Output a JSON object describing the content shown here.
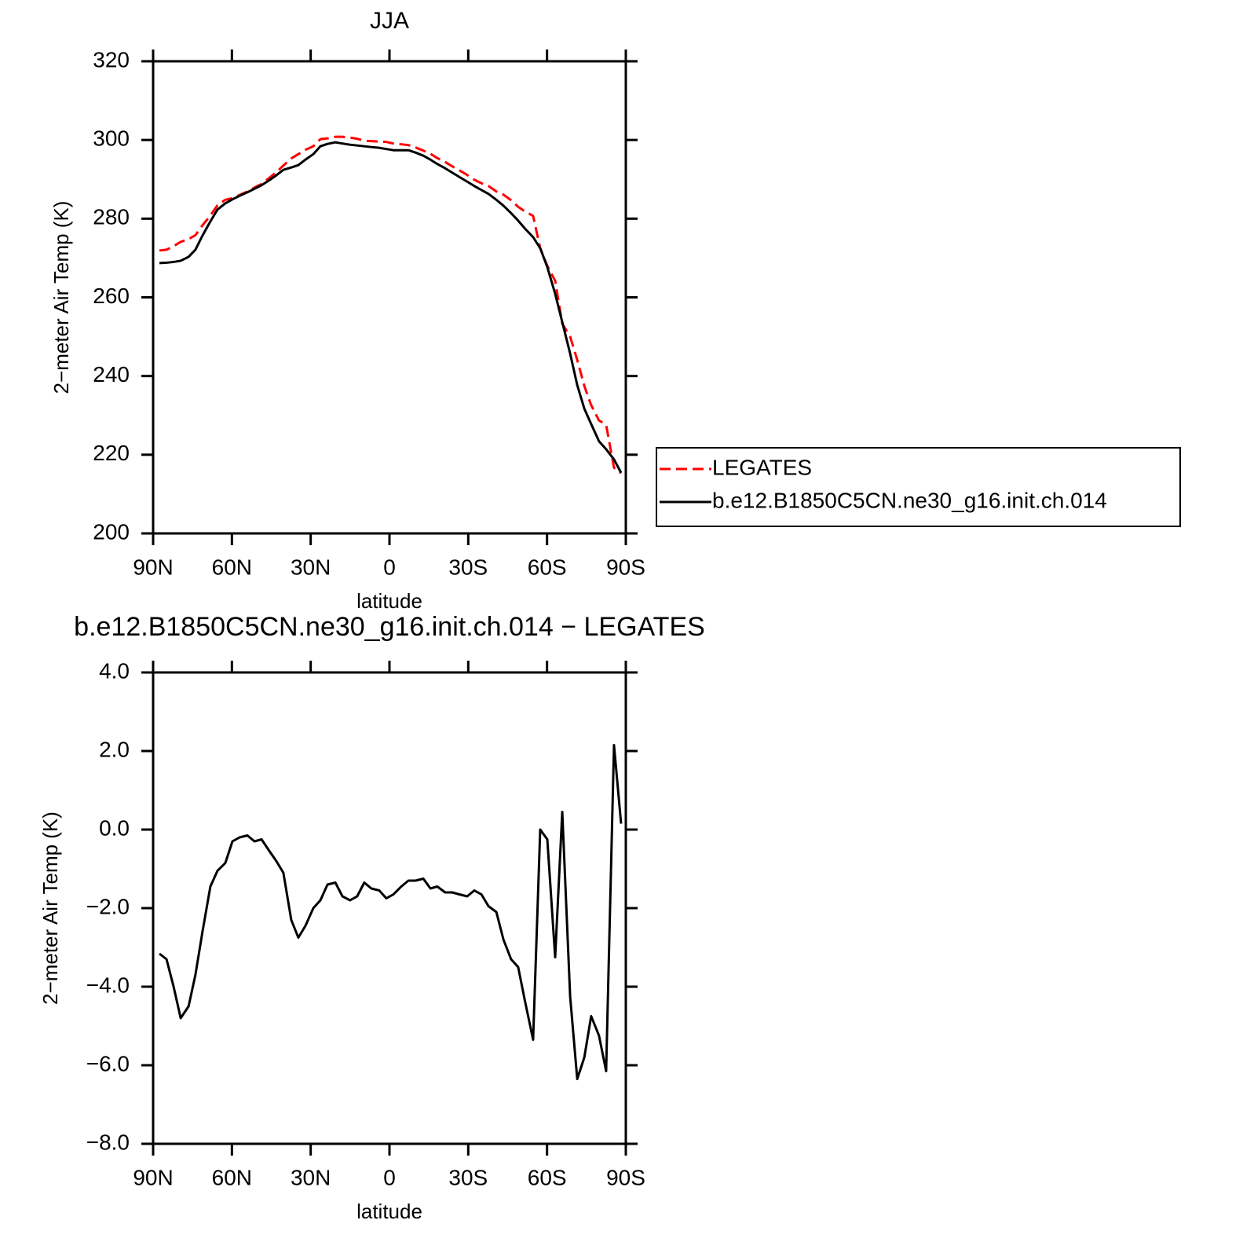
{
  "chart_data": [
    {
      "type": "line",
      "title": "JJA",
      "x_label": "latitude",
      "y_label": "2−meter Air Temp (K)",
      "x": [
        87.6,
        84.9,
        82.2,
        79.5,
        76.5,
        73.9,
        71.2,
        68.2,
        65.5,
        62.5,
        59.8,
        57.1,
        54.1,
        51.4,
        48.7,
        45.7,
        43.1,
        40.4,
        37.4,
        34.7,
        32.0,
        29.0,
        26.3,
        23.6,
        20.6,
        17.9,
        15.0,
        12.3,
        9.6,
        6.9,
        3.9,
        1.2,
        -1.5,
        -4.5,
        -7.2,
        -9.9,
        -12.9,
        -15.6,
        -18.2,
        -21.2,
        -23.9,
        -26.6,
        -29.6,
        -32.3,
        -35.0,
        -37.7,
        -40.7,
        -43.4,
        -46.3,
        -49.0,
        -51.7,
        -54.7,
        -57.4,
        -60.1,
        -63.1,
        -65.8,
        -68.8,
        -71.5,
        -74.2,
        -76.8,
        -79.8,
        -82.5,
        -85.5,
        -88.2
      ],
      "series": [
        {
          "name": "LEGATES",
          "color": "#ff0000",
          "line_style": "dashed",
          "values": [
            271.9,
            272.1,
            273.0,
            274.1,
            274.8,
            275.8,
            278.3,
            280.8,
            283.4,
            284.8,
            285.2,
            286.0,
            286.9,
            287.9,
            288.8,
            290.4,
            291.8,
            293.5,
            295.3,
            296.4,
            297.5,
            298.4,
            300.2,
            300.4,
            300.8,
            300.8,
            300.6,
            300.3,
            299.8,
            299.7,
            299.6,
            299.5,
            299.1,
            298.9,
            298.7,
            298.1,
            297.3,
            296.5,
            295.4,
            294.4,
            293.3,
            292.3,
            291.1,
            289.9,
            289.0,
            288.3,
            286.9,
            286.1,
            284.7,
            283.0,
            281.8,
            280.7,
            272.5,
            268.0,
            264.2,
            253.3,
            250.0,
            244.1,
            237.5,
            232.6,
            228.7,
            227.6,
            216.7,
            215.3
          ]
        },
        {
          "name": "b.e12.B1850C5CN.ne30_g16.init.ch.014",
          "color": "#000000",
          "line_style": "solid",
          "values": [
            268.7,
            268.8,
            269.0,
            269.3,
            270.3,
            272.1,
            275.7,
            279.3,
            282.3,
            283.9,
            284.9,
            285.8,
            286.7,
            287.6,
            288.5,
            289.8,
            291.0,
            292.4,
            293.0,
            293.6,
            295.0,
            296.4,
            298.4,
            299.0,
            299.4,
            299.1,
            298.8,
            298.6,
            298.4,
            298.2,
            298.0,
            297.7,
            297.4,
            297.4,
            297.4,
            296.8,
            296.0,
            295.0,
            293.9,
            292.8,
            291.7,
            290.6,
            289.4,
            288.3,
            287.3,
            286.3,
            284.8,
            283.3,
            281.4,
            279.5,
            277.4,
            275.3,
            272.5,
            267.7,
            260.9,
            253.7,
            245.7,
            237.7,
            231.7,
            227.8,
            223.4,
            221.4,
            218.8,
            215.4
          ]
        }
      ],
      "xlim": [
        90,
        -90
      ],
      "xticks": [
        {
          "value": 90,
          "label": "90N"
        },
        {
          "value": 60,
          "label": "60N"
        },
        {
          "value": 30,
          "label": "30N"
        },
        0,
        {
          "value": -30,
          "label": "30S"
        },
        {
          "value": -60,
          "label": "60S"
        },
        {
          "value": -90,
          "label": "90S"
        }
      ],
      "ylim": [
        200,
        320
      ],
      "yticks": [
        200,
        220,
        240,
        260,
        280,
        300,
        320
      ],
      "legend": "right"
    },
    {
      "type": "line",
      "title": "b.e12.B1850C5CN.ne30_g16.init.ch.014 − LEGATES",
      "x_label": "latitude",
      "y_label": "2−meter Air Temp (K)",
      "x": [
        87.6,
        84.9,
        82.2,
        79.5,
        76.5,
        73.9,
        71.2,
        68.2,
        65.5,
        62.5,
        59.8,
        57.1,
        54.1,
        51.4,
        48.7,
        45.7,
        43.1,
        40.4,
        37.4,
        34.7,
        32.0,
        29.0,
        26.3,
        23.6,
        20.6,
        17.9,
        15.0,
        12.3,
        9.6,
        6.9,
        3.9,
        1.2,
        -1.5,
        -4.5,
        -7.2,
        -9.9,
        -12.9,
        -15.6,
        -18.2,
        -21.2,
        -23.9,
        -26.6,
        -29.6,
        -32.3,
        -35.0,
        -37.7,
        -40.7,
        -43.4,
        -46.3,
        -49.0,
        -51.7,
        -54.7,
        -57.4,
        -60.1,
        -63.1,
        -65.8,
        -68.8,
        -71.5,
        -74.2,
        -76.8,
        -79.8,
        -82.5,
        -85.5,
        -88.2
      ],
      "values": [
        -3.16,
        -3.3,
        -4.0,
        -4.8,
        -4.5,
        -3.7,
        -2.6,
        -1.45,
        -1.05,
        -0.85,
        -0.3,
        -0.2,
        -0.15,
        -0.3,
        -0.25,
        -0.55,
        -0.8,
        -1.1,
        -2.3,
        -2.75,
        -2.45,
        -2.0,
        -1.8,
        -1.4,
        -1.35,
        -1.7,
        -1.8,
        -1.7,
        -1.35,
        -1.5,
        -1.55,
        -1.75,
        -1.65,
        -1.45,
        -1.3,
        -1.3,
        -1.25,
        -1.5,
        -1.45,
        -1.6,
        -1.6,
        -1.65,
        -1.7,
        -1.55,
        -1.65,
        -1.95,
        -2.1,
        -2.8,
        -3.3,
        -3.5,
        -4.4,
        -5.35,
        0.0,
        -0.25,
        -3.25,
        0.45,
        -4.25,
        -6.35,
        -5.8,
        -4.75,
        -5.25,
        -6.15,
        2.15,
        0.15
      ],
      "color": "#000000",
      "xlim": [
        90,
        -90
      ],
      "xticks": [
        {
          "value": 90,
          "label": "90N"
        },
        {
          "value": 60,
          "label": "60N"
        },
        {
          "value": 30,
          "label": "30N"
        },
        0,
        {
          "value": -30,
          "label": "30S"
        },
        {
          "value": -60,
          "label": "60S"
        },
        {
          "value": -90,
          "label": "90S"
        }
      ],
      "ylim": [
        -8,
        4
      ],
      "yticks": [
        {
          "value": -8,
          "label": "−8.0"
        },
        {
          "value": -6,
          "label": "−6.0"
        },
        {
          "value": -4,
          "label": "−4.0"
        },
        {
          "value": -2,
          "label": "−2.0"
        },
        {
          "value": 0,
          "label": "0.0"
        },
        {
          "value": 2,
          "label": "2.0"
        },
        {
          "value": 4,
          "label": "4.0"
        }
      ]
    }
  ]
}
